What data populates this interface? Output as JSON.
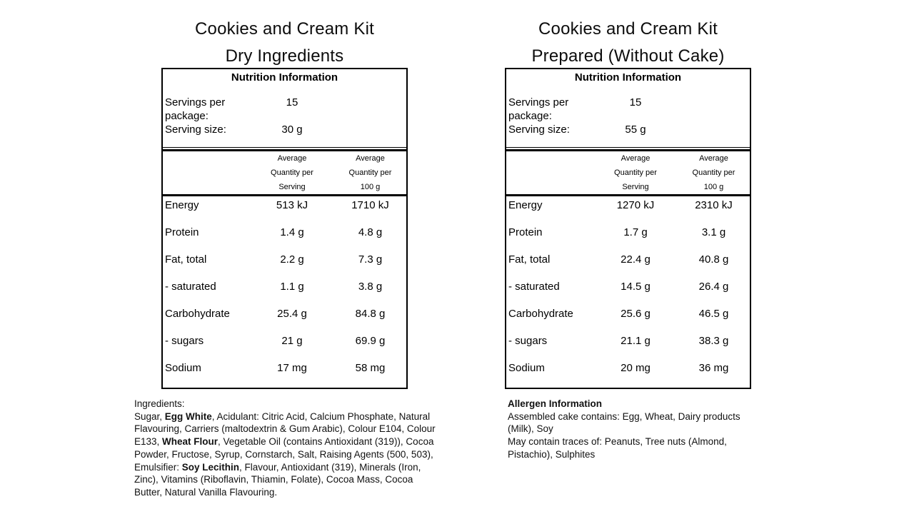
{
  "panels": [
    {
      "title_lines": [
        "Cookies and Cream Kit",
        "Dry Ingredients"
      ],
      "table": {
        "heading": "Nutrition Information",
        "servings_per_package_label": "Servings per package:",
        "servings_per_package_value": "15",
        "serving_size_label": "Serving size:",
        "serving_size_value": "30 g",
        "col_per_serving": [
          "Average",
          "Quantity per",
          "Serving"
        ],
        "col_per_100g": [
          "Average",
          "Quantity per",
          "100 g"
        ],
        "rows": [
          {
            "label": "Energy",
            "per_serving": "513 kJ",
            "per_100g": "1710 kJ"
          },
          {
            "label": "Protein",
            "per_serving": "1.4 g",
            "per_100g": "4.8 g"
          },
          {
            "label": "Fat, total",
            "per_serving": "2.2 g",
            "per_100g": "7.3 g"
          },
          {
            "label": "- saturated",
            "per_serving": "1.1 g",
            "per_100g": "3.8 g"
          },
          {
            "label": "Carbohydrate",
            "per_serving": "25.4 g",
            "per_100g": "84.8 g"
          },
          {
            "label": "- sugars",
            "per_serving": "21 g",
            "per_100g": "69.9 g"
          },
          {
            "label": "Sodium",
            "per_serving": "17 mg",
            "per_100g": "58 mg"
          }
        ]
      },
      "footer": {
        "lines": [
          [
            {
              "t": "Ingredients:",
              "b": false
            }
          ],
          [
            {
              "t": "Sugar, ",
              "b": false
            },
            {
              "t": "Egg White",
              "b": true
            },
            {
              "t": ", Acidulant: Citric Acid, Calcium Phosphate, Natural",
              "b": false
            }
          ],
          [
            {
              "t": "Flavouring, Carriers (maltodextrin & Gum Arabic), Colour E104, Colour",
              "b": false
            }
          ],
          [
            {
              "t": "E133, ",
              "b": false
            },
            {
              "t": "Wheat Flour",
              "b": true
            },
            {
              "t": ", Vegetable Oil (contains Antioxidant (319)), Cocoa",
              "b": false
            }
          ],
          [
            {
              "t": "Powder, Fructose, Syrup, Cornstarch, Salt, Raising Agents (500, 503),",
              "b": false
            }
          ],
          [
            {
              "t": "Emulsifier: ",
              "b": false
            },
            {
              "t": "Soy Lecithin",
              "b": true
            },
            {
              "t": ", Flavour, Antioxidant (319), Minerals (Iron,",
              "b": false
            }
          ],
          [
            {
              "t": "Zinc), Vitamins (Riboflavin, Thiamin, Folate), Cocoa Mass, Cocoa",
              "b": false
            }
          ],
          [
            {
              "t": "Butter, Natural Vanilla Flavouring.",
              "b": false
            }
          ]
        ]
      }
    },
    {
      "title_lines": [
        "Cookies and Cream Kit",
        "Prepared (Without Cake)"
      ],
      "table": {
        "heading": "Nutrition Information",
        "servings_per_package_label": "Servings per package:",
        "servings_per_package_value": "15",
        "serving_size_label": "Serving size:",
        "serving_size_value": "55 g",
        "col_per_serving": [
          "Average",
          "Quantity per",
          "Serving"
        ],
        "col_per_100g": [
          "Average",
          "Quantity per",
          "100 g"
        ],
        "rows": [
          {
            "label": "Energy",
            "per_serving": "1270 kJ",
            "per_100g": "2310 kJ"
          },
          {
            "label": "Protein",
            "per_serving": "1.7 g",
            "per_100g": "3.1 g"
          },
          {
            "label": "Fat, total",
            "per_serving": "22.4 g",
            "per_100g": "40.8 g"
          },
          {
            "label": "- saturated",
            "per_serving": "14.5 g",
            "per_100g": "26.4 g"
          },
          {
            "label": "Carbohydrate",
            "per_serving": "25.6 g",
            "per_100g": "46.5 g"
          },
          {
            "label": "- sugars",
            "per_serving": "21.1 g",
            "per_100g": "38.3 g"
          },
          {
            "label": "Sodium",
            "per_serving": "20 mg",
            "per_100g": "36 mg"
          }
        ]
      },
      "footer": {
        "lines": [
          [
            {
              "t": "Allergen Information",
              "b": true
            }
          ],
          [
            {
              "t": "Assembled cake contains: Egg, Wheat, Dairy products",
              "b": false
            }
          ],
          [
            {
              "t": "(Milk), Soy",
              "b": false
            }
          ],
          [
            {
              "t": "May contain traces of: Peanuts, Tree nuts (Almond,",
              "b": false
            }
          ],
          [
            {
              "t": "Pistachio), Sulphites",
              "b": false
            }
          ]
        ]
      }
    }
  ]
}
